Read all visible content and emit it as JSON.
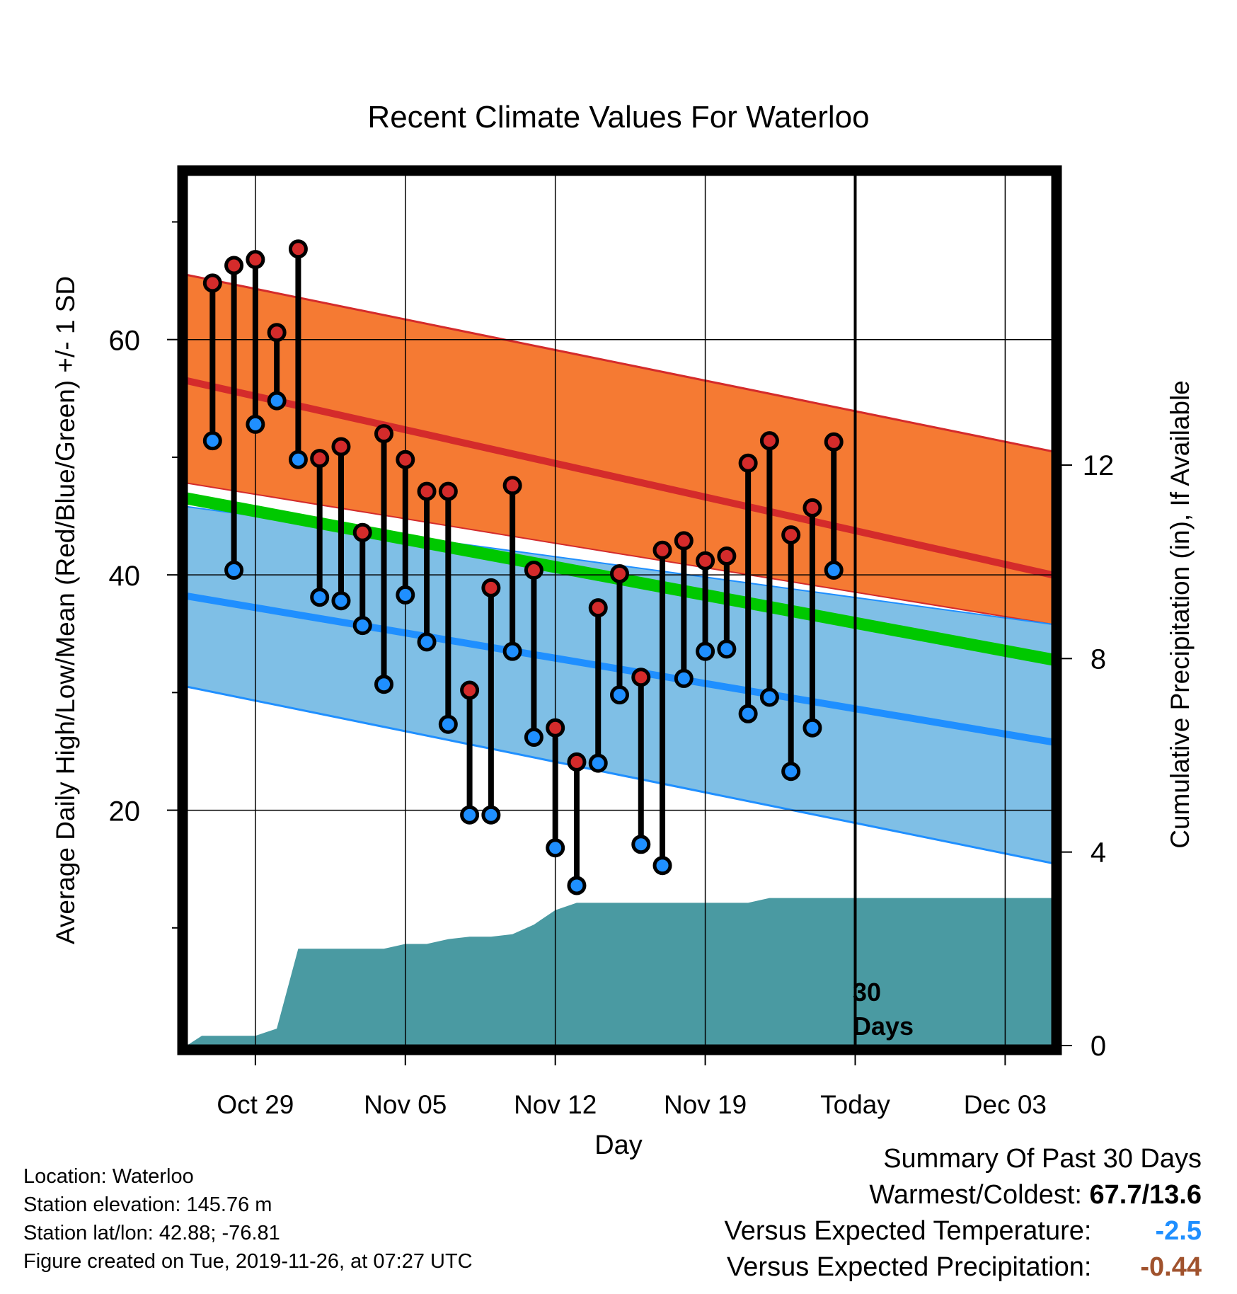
{
  "chart_data": {
    "type": "line",
    "title": "Recent Climate Values For Waterloo",
    "xlabel": "Day",
    "ylabel": "Average Daily High/Low/Mean (Red/Blue/Green) +/- 1 SD",
    "y2label": "Cumulative Precipitation (in), If Available",
    "ylim": [
      0,
      74
    ],
    "y2lim": [
      0,
      18
    ],
    "yticks": [
      20,
      40,
      60
    ],
    "y2ticks": [
      0,
      4,
      8,
      12
    ],
    "grid": true,
    "legend": "none",
    "x_ticks": [
      {
        "day": 3,
        "label": "Oct 29"
      },
      {
        "day": 10,
        "label": "Nov 05"
      },
      {
        "day": 17,
        "label": "Nov 12"
      },
      {
        "day": 24,
        "label": "Nov 19"
      },
      {
        "day": 31,
        "label": "Today"
      },
      {
        "day": 38,
        "label": "Dec 03"
      }
    ],
    "xlim": [
      -0.2,
      40.2
    ],
    "today_marker": {
      "day": 31,
      "label_line1": "30",
      "label_line2": "Days"
    },
    "normals": {
      "days": [
        -0.2,
        40.2
      ],
      "high_mean": [
        56.5,
        40.0
      ],
      "high_upper": [
        65.5,
        50.5
      ],
      "high_lower": [
        47.8,
        35.8
      ],
      "low_mean": [
        38.2,
        25.8
      ],
      "low_upper": [
        45.8,
        35.8
      ],
      "low_lower": [
        30.5,
        15.5
      ],
      "mean_normal": [
        46.5,
        32.8
      ]
    },
    "colors": {
      "high_band": "#f57a33",
      "high_line": "#d42b2b",
      "low_band": "#7fbfe6",
      "low_line": "#1f8fff",
      "mean_line": "#00c800",
      "overlap": "#931a1a",
      "precip": "#4a9aa2",
      "high_dot": "#d42b2b",
      "low_dot": "#1f8fff",
      "colder_value": "#1f8fff",
      "drier_value": "#a0522d"
    },
    "daily": {
      "days": [
        1,
        2,
        3,
        4,
        5,
        6,
        7,
        8,
        9,
        10,
        11,
        12,
        13,
        14,
        15,
        16,
        17,
        18,
        19,
        20,
        21,
        22,
        23,
        24,
        25,
        26,
        27,
        28,
        29,
        30
      ],
      "high": [
        64.8,
        66.3,
        66.8,
        60.6,
        67.7,
        49.9,
        50.9,
        43.6,
        52.0,
        49.8,
        47.1,
        47.1,
        30.2,
        38.9,
        47.6,
        40.4,
        27.0,
        24.1,
        37.2,
        40.1,
        31.3,
        42.1,
        42.9,
        41.2,
        41.6,
        49.5,
        51.4,
        43.4,
        45.7,
        51.3
      ],
      "low": [
        51.4,
        40.4,
        52.8,
        54.8,
        49.8,
        38.1,
        37.8,
        35.7,
        30.7,
        38.3,
        34.3,
        27.3,
        19.6,
        19.6,
        33.5,
        26.2,
        16.8,
        13.6,
        24.0,
        29.8,
        17.1,
        15.3,
        31.2,
        33.5,
        33.7,
        28.2,
        29.6,
        23.3,
        27.0,
        40.4
      ]
    },
    "precip": {
      "days": [
        -0.2,
        0.5,
        2,
        3,
        4,
        5,
        6,
        7,
        8,
        9,
        10,
        11,
        12,
        13,
        14,
        15,
        16,
        17,
        18,
        19,
        20,
        21,
        22,
        23,
        24,
        25,
        26,
        27,
        28,
        29,
        30,
        31,
        32,
        33,
        34,
        35,
        36,
        37,
        38,
        39,
        40.2
      ],
      "values": [
        0,
        0.2,
        0.2,
        0.2,
        0.35,
        2.0,
        2.0,
        2.0,
        2.0,
        2.0,
        2.1,
        2.1,
        2.2,
        2.25,
        2.25,
        2.3,
        2.5,
        2.8,
        2.95,
        2.95,
        2.95,
        2.95,
        2.95,
        2.95,
        2.95,
        2.95,
        2.95,
        3.05,
        3.05,
        3.05,
        3.05,
        3.05,
        3.05,
        3.05,
        3.05,
        3.05,
        3.05,
        3.05,
        3.05,
        3.05,
        3.05
      ]
    }
  },
  "footer": {
    "location": "Location: Waterloo",
    "elevation": "Station elevation: 145.76 m",
    "latlon": "Station lat/lon: 42.88; -76.81",
    "created": "Figure created on Tue, 2019-11-26, at 07:27 UTC"
  },
  "summary": {
    "title": "Summary Of Past 30 Days",
    "warmest_coldest_label": "Warmest/Coldest:",
    "warmest_coldest_value": "67.7/13.6",
    "temp_label": "Versus Expected Temperature:",
    "temp_value": "-2.5",
    "precip_label": "Versus Expected Precipitation:",
    "precip_value": "-0.44"
  }
}
